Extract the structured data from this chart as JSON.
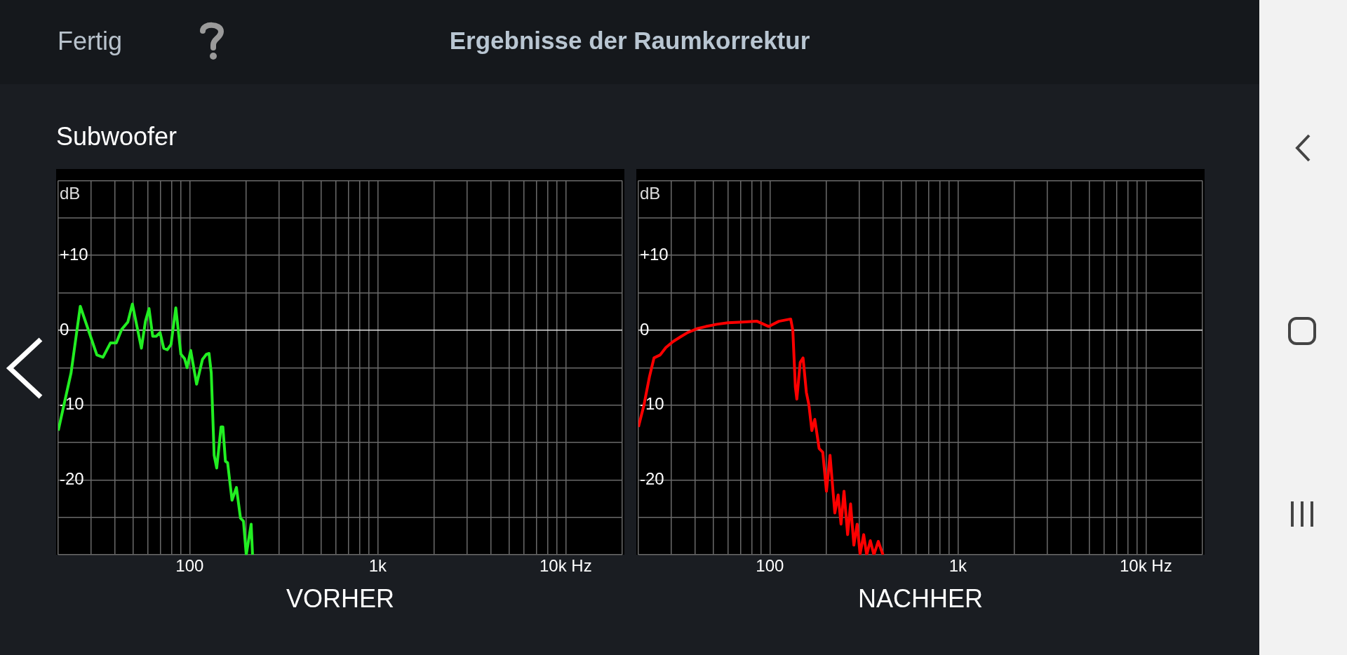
{
  "chart_data": [
    {
      "type": "line",
      "title": "Ergebnisse der Raumkorrektur",
      "subtitle": "Subwoofer",
      "annotations": [
        "Fertig"
      ],
      "xlabel": "VORHER",
      "ylabel": "dB",
      "log": "x",
      "grid": true,
      "xlim": [
        20,
        20000
      ],
      "xticks": [
        {
          "value": 20,
          "label": null
        },
        {
          "value": 30,
          "label": null
        },
        {
          "value": 40,
          "label": null
        },
        {
          "value": 50,
          "label": null
        },
        {
          "value": 60,
          "label": null
        },
        {
          "value": 70,
          "label": null
        },
        {
          "value": 80,
          "label": null
        },
        {
          "value": 90,
          "label": null
        },
        {
          "value": 100,
          "label": "100"
        },
        {
          "value": 200,
          "label": null
        },
        {
          "value": 300,
          "label": null
        },
        {
          "value": 400,
          "label": null
        },
        {
          "value": 500,
          "label": null
        },
        {
          "value": 600,
          "label": null
        },
        {
          "value": 700,
          "label": null
        },
        {
          "value": 800,
          "label": null
        },
        {
          "value": 900,
          "label": null
        },
        {
          "value": 1000,
          "label": "1k"
        },
        {
          "value": 2000,
          "label": null
        },
        {
          "value": 3000,
          "label": null
        },
        {
          "value": 4000,
          "label": null
        },
        {
          "value": 5000,
          "label": null
        },
        {
          "value": 6000,
          "label": null
        },
        {
          "value": 7000,
          "label": null
        },
        {
          "value": 8000,
          "label": null
        },
        {
          "value": 9000,
          "label": null
        },
        {
          "value": 10000,
          "label": "10k Hz"
        },
        {
          "value": 20000,
          "label": null
        }
      ],
      "ylim": [
        -30,
        20
      ],
      "yticks": [
        {
          "value": -30,
          "label": null
        },
        {
          "value": -25,
          "label": null
        },
        {
          "value": -20,
          "label": "-20"
        },
        {
          "value": -15,
          "label": null
        },
        {
          "value": -10,
          "label": "-10"
        },
        {
          "value": -5,
          "label": null
        },
        0,
        {
          "value": 5,
          "label": null
        },
        {
          "value": 10,
          "label": "+10"
        },
        {
          "value": 15,
          "label": null
        },
        {
          "value": 20,
          "label": null
        }
      ],
      "series": [
        {
          "color": "#22ee22",
          "x": [
            20,
            23.4,
            26.2,
            32.1,
            34.6,
            37.9,
            40.7,
            43.5,
            46.9,
            49.6,
            55.4,
            58.2,
            60.8,
            63.6,
            66.5,
            69.6,
            72.8,
            76.1,
            79.6,
            84.4,
            89.8,
            94,
            96.9,
            101.3,
            108.9,
            117,
            122.9,
            126.8,
            130.3,
            135,
            139.3,
            146.9,
            150.2,
            155,
            159.2,
            168,
            177.3,
            186.4,
            193.3,
            200,
            212.4,
            216
          ],
          "values": [
            -13.4,
            -5.7,
            3.2,
            -3.3,
            -3.6,
            -1.7,
            -1.7,
            0.1,
            1.1,
            3.5,
            -2.4,
            1.2,
            2.9,
            -0.8,
            -0.8,
            -0.3,
            -2.4,
            -2.6,
            -1.9,
            3.0,
            -3.2,
            -3.8,
            -5.0,
            -2.7,
            -7.2,
            -3.9,
            -3.2,
            -3.1,
            -5.7,
            -16.7,
            -18.4,
            -12.9,
            -12.9,
            -17.5,
            -17.7,
            -22.7,
            -21.0,
            -25.1,
            -25.5,
            -30,
            -25.9,
            -30
          ]
        }
      ]
    },
    {
      "type": "line",
      "xlabel": "NACHHER",
      "ylabel": "dB",
      "log": "x",
      "grid": true,
      "xlim": [
        20,
        20000
      ],
      "xticks": [
        {
          "value": 20,
          "label": null
        },
        {
          "value": 30,
          "label": null
        },
        {
          "value": 40,
          "label": null
        },
        {
          "value": 50,
          "label": null
        },
        {
          "value": 60,
          "label": null
        },
        {
          "value": 70,
          "label": null
        },
        {
          "value": 80,
          "label": null
        },
        {
          "value": 90,
          "label": null
        },
        {
          "value": 100,
          "label": "100"
        },
        {
          "value": 200,
          "label": null
        },
        {
          "value": 300,
          "label": null
        },
        {
          "value": 400,
          "label": null
        },
        {
          "value": 500,
          "label": null
        },
        {
          "value": 600,
          "label": null
        },
        {
          "value": 700,
          "label": null
        },
        {
          "value": 800,
          "label": null
        },
        {
          "value": 900,
          "label": null
        },
        {
          "value": 1000,
          "label": "1k"
        },
        {
          "value": 2000,
          "label": null
        },
        {
          "value": 3000,
          "label": null
        },
        {
          "value": 4000,
          "label": null
        },
        {
          "value": 5000,
          "label": null
        },
        {
          "value": 6000,
          "label": null
        },
        {
          "value": 7000,
          "label": null
        },
        {
          "value": 8000,
          "label": null
        },
        {
          "value": 9000,
          "label": null
        },
        {
          "value": 10000,
          "label": "10k Hz"
        },
        {
          "value": 20000,
          "label": null
        }
      ],
      "ylim": [
        -30,
        20
      ],
      "yticks": [
        {
          "value": -30,
          "label": null
        },
        {
          "value": -25,
          "label": null
        },
        {
          "value": -20,
          "label": "-20"
        },
        {
          "value": -15,
          "label": null
        },
        {
          "value": -10,
          "label": "-10"
        },
        {
          "value": -5,
          "label": null
        },
        0,
        {
          "value": 5,
          "label": null
        },
        {
          "value": 10,
          "label": "+10"
        },
        {
          "value": 15,
          "label": null
        },
        {
          "value": 20,
          "label": null
        }
      ],
      "series": [
        {
          "color": "#ff0000",
          "x": [
            20,
            21.4,
            22.9,
            24.2,
            26.1,
            28,
            30.6,
            33.4,
            36.6,
            40.9,
            45.7,
            52.3,
            59.8,
            71.5,
            85.5,
            98.7,
            111.8,
            129.1,
            132.5,
            136.7,
            139.2,
            145,
            150.2,
            156.4,
            161.4,
            167.3,
            173.4,
            182.9,
            191.2,
            200,
            209,
            221.6,
            230.8,
            239.1,
            248,
            259.2,
            268.8,
            279.8,
            291.3,
            301.9,
            315.6,
            327.4,
            342.3,
            357.7,
            377.3,
            399.7
          ],
          "values": [
            -12.9,
            -10.0,
            -6.2,
            -3.7,
            -3.3,
            -2.3,
            -1.5,
            -0.9,
            -0.3,
            0.2,
            0.5,
            0.8,
            1.0,
            1.1,
            1.2,
            0.5,
            1.2,
            1.5,
            0,
            -7.6,
            -9.2,
            -4.3,
            -3.7,
            -8.3,
            -10.0,
            -13.4,
            -11.9,
            -15.8,
            -16.3,
            -21.5,
            -16.7,
            -24.4,
            -22,
            -25.9,
            -21.5,
            -27.3,
            -23.2,
            -28.7,
            -25.9,
            -29.9,
            -27.3,
            -30,
            -28.1,
            -30,
            -28.2,
            -30
          ]
        }
      ]
    }
  ]
}
